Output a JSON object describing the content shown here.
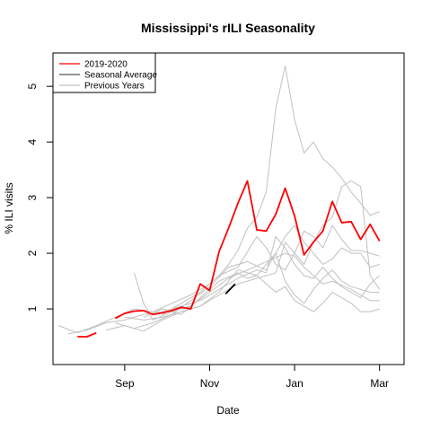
{
  "chart_data": {
    "type": "line",
    "title": "Mississippi's rILI Seasonality",
    "xlabel": "Date",
    "ylabel": "% ILI visits",
    "ylim": [
      0.0,
      5.6
    ],
    "y_ticks": [
      1,
      2,
      3,
      4,
      5
    ],
    "x_tick_labels": [
      {
        "label": "Sep",
        "week": 8
      },
      {
        "label": "Nov",
        "week": 17
      },
      {
        "label": "Jan",
        "week": 26
      },
      {
        "label": "Mar",
        "week": 35
      }
    ],
    "x_unit": "week of season (1 = first week of August)",
    "xlim": [
      0.4,
      37.6
    ],
    "legend": {
      "position": "top-left",
      "entries": [
        {
          "label": "2019-2020",
          "color": "#ff0000"
        },
        {
          "label": "Seasonal Average",
          "color": "#555555"
        },
        {
          "label": "Previous Years",
          "color": "#c0c0c0"
        }
      ]
    },
    "series": [
      {
        "name": "2019-2020",
        "color": "#ff0000",
        "segments": [
          [
            [
              3,
              0.5
            ],
            [
              4,
              0.5
            ],
            [
              5,
              0.57
            ]
          ],
          [
            [
              7,
              0.83
            ],
            [
              8,
              0.92
            ],
            [
              9,
              0.96
            ],
            [
              10,
              0.97
            ],
            [
              11,
              0.9
            ],
            [
              12,
              0.93
            ],
            [
              13,
              0.97
            ],
            [
              14,
              1.03
            ],
            [
              15,
              1.0
            ],
            [
              16,
              1.45
            ],
            [
              17,
              1.33
            ],
            [
              18,
              2.03
            ],
            [
              19,
              2.45
            ],
            [
              20,
              2.9
            ],
            [
              21,
              3.3
            ],
            [
              22,
              2.42
            ],
            [
              23,
              2.4
            ],
            [
              24,
              2.7
            ],
            [
              25,
              3.17
            ],
            [
              26,
              2.67
            ],
            [
              27,
              1.97
            ],
            [
              28,
              2.2
            ],
            [
              29,
              2.4
            ],
            [
              30,
              2.93
            ],
            [
              31,
              2.55
            ],
            [
              32,
              2.57
            ],
            [
              33,
              2.25
            ],
            [
              34,
              2.52
            ],
            [
              35,
              2.22
            ]
          ]
        ]
      },
      {
        "name": "Seasonal Average",
        "color": "#000000",
        "segments": [
          [
            [
              18.7,
              1.27
            ],
            [
              19.7,
              1.45
            ]
          ]
        ]
      },
      {
        "color": "#c0c0c0",
        "segments": [
          [
            [
              1,
              0.7
            ],
            [
              3,
              0.57
            ],
            [
              5,
              0.7
            ],
            [
              7,
              0.85
            ],
            [
              9,
              1.0
            ],
            [
              11,
              0.95
            ],
            [
              13,
              1.1
            ],
            [
              15,
              1.25
            ],
            [
              17,
              1.45
            ],
            [
              18,
              1.6
            ],
            [
              19,
              1.8
            ],
            [
              20,
              2.05
            ],
            [
              21,
              2.45
            ],
            [
              22,
              2.65
            ],
            [
              23,
              3.1
            ],
            [
              24,
              4.6
            ],
            [
              25,
              5.37
            ],
            [
              26,
              4.4
            ],
            [
              27,
              3.8
            ],
            [
              28,
              4.0
            ],
            [
              29,
              3.7
            ],
            [
              30,
              3.55
            ],
            [
              31,
              3.35
            ],
            [
              32,
              3.1
            ],
            [
              33,
              2.9
            ],
            [
              34,
              2.68
            ],
            [
              35,
              2.75
            ]
          ]
        ]
      },
      {
        "color": "#c0c0c0",
        "segments": [
          [
            [
              9,
              1.65
            ],
            [
              10,
              1.1
            ],
            [
              11,
              0.8
            ],
            [
              13,
              0.95
            ],
            [
              15,
              1.05
            ],
            [
              17,
              1.3
            ],
            [
              19,
              1.55
            ],
            [
              21,
              1.7
            ],
            [
              23,
              1.85
            ],
            [
              25,
              2.0
            ],
            [
              26,
              1.95
            ],
            [
              27,
              1.75
            ],
            [
              28,
              1.6
            ],
            [
              29,
              1.45
            ],
            [
              30,
              1.5
            ],
            [
              32,
              1.35
            ],
            [
              33,
              1.25
            ],
            [
              34,
              1.15
            ],
            [
              35,
              1.15
            ]
          ]
        ]
      },
      {
        "color": "#c0c0c0",
        "segments": [
          [
            [
              2,
              0.55
            ],
            [
              4,
              0.62
            ],
            [
              6,
              0.75
            ],
            [
              8,
              0.8
            ],
            [
              10,
              0.9
            ],
            [
              12,
              0.95
            ],
            [
              14,
              1.05
            ],
            [
              16,
              1.15
            ],
            [
              18,
              1.35
            ],
            [
              20,
              1.55
            ],
            [
              22,
              1.7
            ],
            [
              23,
              1.65
            ],
            [
              24,
              2.3
            ],
            [
              25,
              2.1
            ],
            [
              26,
              1.8
            ],
            [
              27,
              1.6
            ],
            [
              28,
              1.55
            ],
            [
              29,
              1.75
            ],
            [
              30,
              1.55
            ],
            [
              31,
              1.4
            ],
            [
              32,
              1.3
            ],
            [
              33,
              1.2
            ],
            [
              34,
              1.45
            ],
            [
              35,
              1.6
            ]
          ]
        ]
      },
      {
        "color": "#c0c0c0",
        "segments": [
          [
            [
              6,
              0.62
            ],
            [
              8,
              0.7
            ],
            [
              10,
              0.6
            ],
            [
              12,
              0.8
            ],
            [
              14,
              0.95
            ],
            [
              16,
              1.05
            ],
            [
              18,
              1.25
            ],
            [
              20,
              1.45
            ],
            [
              22,
              1.55
            ],
            [
              24,
              1.65
            ],
            [
              25,
              2.2
            ],
            [
              26,
              2.0
            ],
            [
              27,
              1.8
            ],
            [
              28,
              2.2
            ],
            [
              29,
              2.5
            ],
            [
              30,
              2.65
            ],
            [
              31,
              3.2
            ],
            [
              32,
              3.3
            ],
            [
              33,
              3.2
            ],
            [
              34,
              1.6
            ],
            [
              35,
              1.35
            ]
          ]
        ]
      },
      {
        "color": "#c0c0c0",
        "segments": [
          [
            [
              8,
              0.85
            ],
            [
              10,
              0.8
            ],
            [
              12,
              0.85
            ],
            [
              14,
              0.95
            ],
            [
              16,
              1.05
            ],
            [
              18,
              1.3
            ],
            [
              20,
              1.7
            ],
            [
              22,
              1.6
            ],
            [
              24,
              1.3
            ],
            [
              25,
              1.4
            ],
            [
              26,
              1.15
            ],
            [
              27,
              1.05
            ],
            [
              28,
              0.95
            ],
            [
              29,
              1.1
            ],
            [
              30,
              1.3
            ],
            [
              31,
              1.2
            ],
            [
              32,
              1.1
            ],
            [
              33,
              0.95
            ],
            [
              34,
              0.95
            ],
            [
              35,
              1.0
            ]
          ]
        ]
      },
      {
        "color": "#c0c0c0",
        "segments": [
          [
            [
              7,
              0.75
            ],
            [
              9,
              0.65
            ],
            [
              11,
              0.75
            ],
            [
              13,
              0.9
            ],
            [
              15,
              1.15
            ],
            [
              17,
              1.4
            ],
            [
              19,
              1.75
            ],
            [
              21,
              1.85
            ],
            [
              23,
              1.7
            ],
            [
              25,
              2.3
            ],
            [
              26,
              2.5
            ],
            [
              27,
              2.2
            ],
            [
              28,
              2.0
            ],
            [
              29,
              1.8
            ],
            [
              30,
              1.9
            ],
            [
              31,
              2.1
            ],
            [
              32,
              2.0
            ],
            [
              33,
              2.0
            ],
            [
              34,
              1.75
            ],
            [
              35,
              1.8
            ]
          ]
        ]
      },
      {
        "color": "#c0c0c0",
        "segments": [
          [
            [
              10,
              0.85
            ],
            [
              12,
              1.0
            ],
            [
              14,
              0.9
            ],
            [
              16,
              1.2
            ],
            [
              18,
              1.5
            ],
            [
              20,
              1.65
            ],
            [
              21,
              1.55
            ],
            [
              22,
              1.6
            ],
            [
              24,
              2.0
            ],
            [
              25,
              1.5
            ],
            [
              26,
              1.25
            ],
            [
              27,
              1.1
            ],
            [
              28,
              1.35
            ],
            [
              29,
              1.55
            ],
            [
              30,
              1.7
            ],
            [
              31,
              1.5
            ],
            [
              32,
              1.4
            ],
            [
              33,
              1.35
            ],
            [
              34,
              1.3
            ],
            [
              35,
              1.3
            ]
          ]
        ]
      },
      {
        "color": "#c0c0c0",
        "segments": [
          [
            [
              12,
              0.9
            ],
            [
              14,
              1.1
            ],
            [
              16,
              1.3
            ],
            [
              18,
              1.6
            ],
            [
              20,
              1.75
            ],
            [
              22,
              2.3
            ],
            [
              23,
              2.1
            ],
            [
              24,
              1.8
            ],
            [
              25,
              1.7
            ],
            [
              26,
              2.0
            ],
            [
              27,
              2.4
            ],
            [
              28,
              2.3
            ],
            [
              29,
              2.1
            ],
            [
              30,
              2.5
            ],
            [
              31,
              2.25
            ],
            [
              32,
              2.05
            ],
            [
              33,
              2.05
            ],
            [
              34,
              2.0
            ],
            [
              35,
              1.95
            ]
          ]
        ]
      }
    ]
  }
}
